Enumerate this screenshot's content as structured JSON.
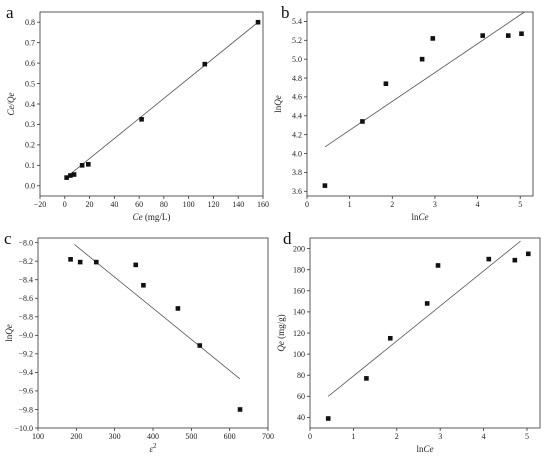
{
  "chart_data": [
    {
      "type": "scatter",
      "panel": "a",
      "xlabel": "Ce (mg/L)",
      "xlabel_parts": {
        "italic": "Ce",
        "rest": " (mg/L)"
      },
      "ylabel": "Ce/Qe",
      "xlim": [
        -20,
        160
      ],
      "ylim": [
        -0.05,
        0.85
      ],
      "xticks": [
        -20,
        0,
        20,
        40,
        60,
        80,
        100,
        120,
        140,
        160
      ],
      "yticks": [
        0.0,
        0.1,
        0.2,
        0.3,
        0.4,
        0.5,
        0.6,
        0.7,
        0.8
      ],
      "ytick_decimals": 1,
      "xtick_decimals": 0,
      "points": [
        [
          1.5,
          0.04
        ],
        [
          4.5,
          0.05
        ],
        [
          7.5,
          0.055
        ],
        [
          14,
          0.1
        ],
        [
          19,
          0.105
        ],
        [
          62,
          0.325
        ],
        [
          113,
          0.595
        ],
        [
          156,
          0.8
        ]
      ],
      "fit_line": [
        [
          1,
          0.04
        ],
        [
          156,
          0.8
        ]
      ]
    },
    {
      "type": "scatter",
      "panel": "b",
      "xlabel": "lnCe",
      "xlabel_parts": {
        "plain": "ln",
        "italic": "Ce"
      },
      "ylabel": "lnQe",
      "xlim": [
        0,
        5.3
      ],
      "ylim": [
        3.55,
        5.5
      ],
      "xticks": [
        0,
        1,
        2,
        3,
        4,
        5
      ],
      "yticks": [
        3.6,
        3.8,
        4.0,
        4.2,
        4.4,
        4.6,
        4.8,
        5.0,
        5.2,
        5.4
      ],
      "ytick_decimals": 1,
      "xtick_decimals": 0,
      "points": [
        [
          0.42,
          3.66
        ],
        [
          1.3,
          4.34
        ],
        [
          1.85,
          4.74
        ],
        [
          2.7,
          5.0
        ],
        [
          2.95,
          5.22
        ],
        [
          4.12,
          5.25
        ],
        [
          4.72,
          5.25
        ],
        [
          5.03,
          5.27
        ]
      ],
      "fit_line": [
        [
          0.42,
          4.07
        ],
        [
          5.1,
          5.5
        ]
      ]
    },
    {
      "type": "scatter",
      "panel": "c",
      "xlabel": "ε2",
      "xlabel_parts": {
        "italic": "ε",
        "sup": "2"
      },
      "ylabel": "lnQe",
      "xlim": [
        100,
        700
      ],
      "ylim": [
        -10.0,
        -7.95
      ],
      "xticks": [
        100,
        200,
        300,
        400,
        500,
        600,
        700
      ],
      "yticks": [
        -8.0,
        -8.2,
        -8.4,
        -8.6,
        -8.8,
        -9.0,
        -9.2,
        -9.4,
        -9.6,
        -9.8,
        -10.0
      ],
      "ytick_decimals": 1,
      "xtick_decimals": 0,
      "points": [
        [
          185,
          -8.18
        ],
        [
          210,
          -8.21
        ],
        [
          252,
          -8.21
        ],
        [
          355,
          -8.24
        ],
        [
          375,
          -8.46
        ],
        [
          465,
          -8.71
        ],
        [
          522,
          -9.11
        ],
        [
          627,
          -9.8
        ]
      ],
      "fit_line": [
        [
          195,
          -8.02
        ],
        [
          627,
          -9.47
        ]
      ]
    },
    {
      "type": "scatter",
      "panel": "d",
      "xlabel": "lnCe",
      "xlabel_parts": {
        "plain": "ln",
        "italic": "Ce"
      },
      "ylabel": "Qe (mg/g)",
      "xlim": [
        0,
        5.3
      ],
      "ylim": [
        30,
        210
      ],
      "xticks": [
        0,
        1,
        2,
        3,
        4,
        5
      ],
      "yticks": [
        40,
        60,
        80,
        100,
        120,
        140,
        160,
        180,
        200
      ],
      "ytick_decimals": 0,
      "xtick_decimals": 0,
      "points": [
        [
          0.42,
          39
        ],
        [
          1.3,
          77
        ],
        [
          1.85,
          115
        ],
        [
          2.7,
          148
        ],
        [
          2.95,
          184
        ],
        [
          4.12,
          190
        ],
        [
          4.72,
          189
        ],
        [
          5.03,
          195
        ]
      ],
      "fit_line": [
        [
          0.42,
          60
        ],
        [
          4.85,
          207
        ]
      ]
    }
  ]
}
